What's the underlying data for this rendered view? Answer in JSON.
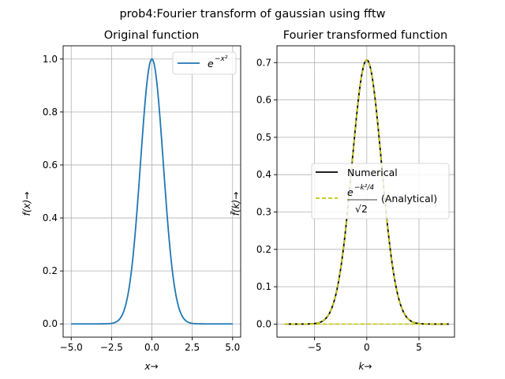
{
  "figure": {
    "suptitle": "prob4:Fourier transform of gaussian using fftw"
  },
  "chart_data": [
    {
      "type": "line",
      "title": "Original function",
      "xlabel": "x→",
      "ylabel": "f(x)→",
      "xlim": [
        -5.5,
        5.5
      ],
      "ylim": [
        -0.05,
        1.05
      ],
      "xticks": [
        -5.0,
        -2.5,
        0.0,
        2.5,
        5.0
      ],
      "xtick_labels": [
        "−5.0",
        "−2.5",
        "0.0",
        "2.5",
        "5.0"
      ],
      "yticks": [
        0.0,
        0.2,
        0.4,
        0.6,
        0.8,
        1.0
      ],
      "ytick_labels": [
        "0.0",
        "0.2",
        "0.4",
        "0.6",
        "0.8",
        "1.0"
      ],
      "grid": true,
      "legend_position": "upper-right",
      "series": [
        {
          "name": "e^{-x^2}",
          "legend_base": "e",
          "legend_sup": "−x²",
          "color": "#1f77b4",
          "style": "solid",
          "function": "exp(-x^2)",
          "domain": [
            -5,
            5
          ]
        }
      ]
    },
    {
      "type": "line",
      "title": "Fourier transformed function",
      "xlabel": "k→",
      "ylabel": "f̃(k)→",
      "xlim": [
        -8.6,
        8.4
      ],
      "ylim": [
        -0.035,
        0.745
      ],
      "xticks": [
        -5,
        0,
        5
      ],
      "xtick_labels": [
        "−5",
        "0",
        "5"
      ],
      "yticks": [
        0.0,
        0.1,
        0.2,
        0.3,
        0.4,
        0.5,
        0.6,
        0.7
      ],
      "ytick_labels": [
        "0.0",
        "0.1",
        "0.2",
        "0.3",
        "0.4",
        "0.5",
        "0.6",
        "0.7"
      ],
      "grid": true,
      "legend_position": "center-right",
      "series": [
        {
          "name": "Numerical",
          "color": "#000000",
          "style": "solid",
          "function": "exp(-k^2/4)/sqrt(2)",
          "domain": [
            -7.85,
            7.85
          ]
        },
        {
          "name": "(Analytical)",
          "legend_numerator_base": "e",
          "legend_numerator_sup": "−k²/4",
          "legend_denominator": "√2",
          "color": "#c8c800",
          "style": "dashed",
          "function": "exp(-k^2/4)/sqrt(2)",
          "domain": [
            -7.85,
            7.85
          ]
        }
      ]
    }
  ]
}
